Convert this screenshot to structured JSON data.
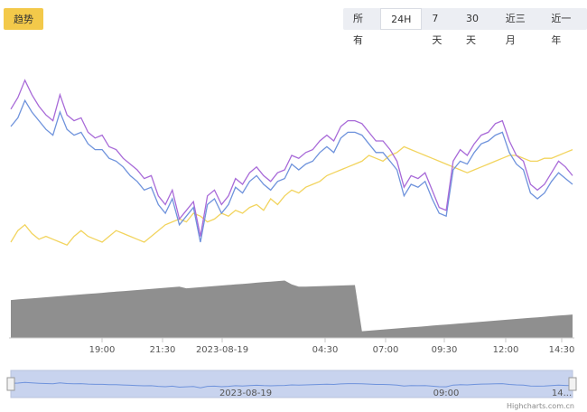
{
  "toolbar": {
    "trend_label": "趋势",
    "ranges": [
      "所有",
      "24H",
      "7天",
      "30天",
      "近三月",
      "近一年"
    ],
    "active_range": "24H"
  },
  "credit": "Highcharts.com.cn",
  "chart_data": {
    "type": "line",
    "title": "",
    "xlabel": "",
    "ylabel": "",
    "x_tick_labels": [
      "19:00",
      "21:30",
      "2023-08-19",
      "04:30",
      "07:00",
      "09:30",
      "12:00",
      "14:30"
    ],
    "navigator_tick_labels": [
      "2023-08-19",
      "09:00",
      "14..."
    ],
    "grid": false,
    "legend": "none",
    "colors": {
      "purple": "#a86ad8",
      "blue": "#6f93dc",
      "yellow": "#f2d45e",
      "volume": "#8f8f8f",
      "navigator_fill": "#c8d3ee",
      "navigator_line": "#6f93dc"
    },
    "x": [
      0,
      1,
      2,
      3,
      4,
      5,
      6,
      7,
      8,
      9,
      10,
      11,
      12,
      13,
      14,
      15,
      16,
      17,
      18,
      19,
      20,
      21,
      22,
      23,
      24,
      25,
      26,
      27,
      28,
      29,
      30,
      31,
      32,
      33,
      34,
      35,
      36,
      37,
      38,
      39,
      40,
      41,
      42,
      43,
      44,
      45,
      46,
      47,
      48,
      49,
      50,
      51,
      52,
      53,
      54,
      55,
      56,
      57,
      58,
      59,
      60,
      61,
      62,
      63,
      64,
      65,
      66,
      67,
      68,
      69,
      70,
      71,
      72,
      73,
      74,
      75,
      76,
      77,
      78,
      79,
      80
    ],
    "series": [
      {
        "color": "purple",
        "values": [
          66,
          70,
          76,
          71,
          67,
          64,
          62,
          71,
          64,
          62,
          63,
          58,
          56,
          57,
          53,
          52,
          49,
          47,
          45,
          42,
          43,
          36,
          33,
          38,
          28,
          31,
          34,
          22,
          36,
          38,
          33,
          36,
          42,
          40,
          44,
          46,
          43,
          41,
          44,
          45,
          50,
          49,
          51,
          52,
          55,
          57,
          55,
          60,
          62,
          62,
          61,
          58,
          55,
          55,
          52,
          48,
          39,
          43,
          42,
          44,
          38,
          32,
          31,
          48,
          52,
          50,
          54,
          57,
          58,
          61,
          62,
          55,
          50,
          48,
          40,
          38,
          40,
          44,
          48,
          46,
          43
        ]
      },
      {
        "color": "blue",
        "values": [
          60,
          63,
          69,
          65,
          62,
          59,
          57,
          65,
          59,
          57,
          58,
          54,
          52,
          52,
          49,
          48,
          46,
          43,
          41,
          38,
          39,
          33,
          30,
          35,
          26,
          29,
          32,
          20,
          33,
          35,
          30,
          33,
          39,
          37,
          41,
          43,
          40,
          38,
          41,
          42,
          47,
          45,
          47,
          48,
          51,
          53,
          51,
          56,
          58,
          58,
          57,
          54,
          51,
          51,
          48,
          45,
          36,
          40,
          39,
          41,
          35,
          30,
          29,
          45,
          48,
          47,
          51,
          54,
          55,
          57,
          58,
          51,
          47,
          45,
          37,
          35,
          37,
          41,
          44,
          42,
          40
        ]
      },
      {
        "color": "yellow",
        "values": [
          20,
          24,
          26,
          23,
          21,
          22,
          21,
          20,
          19,
          22,
          24,
          22,
          21,
          20,
          22,
          24,
          23,
          22,
          21,
          20,
          22,
          24,
          26,
          27,
          28,
          27,
          30,
          29,
          27,
          28,
          30,
          29,
          31,
          30,
          32,
          33,
          31,
          35,
          33,
          36,
          38,
          37,
          39,
          40,
          41,
          43,
          44,
          45,
          46,
          47,
          48,
          50,
          49,
          48,
          50,
          51,
          53,
          52,
          51,
          50,
          49,
          48,
          47,
          46,
          45,
          44,
          45,
          46,
          47,
          48,
          49,
          50,
          50,
          49,
          48,
          48,
          49,
          49,
          50,
          51,
          52
        ]
      }
    ],
    "ylim": [
      10,
      85
    ],
    "volume": {
      "values": [
        34,
        34.5,
        35,
        35.5,
        36,
        36.5,
        37,
        37.5,
        38,
        38.5,
        39,
        39.5,
        40,
        40.5,
        41,
        41.5,
        42,
        42.5,
        43,
        43.5,
        44,
        44.5,
        45,
        45.5,
        46,
        44.5,
        45,
        45.5,
        46,
        46.5,
        47,
        47.5,
        48,
        48.5,
        49,
        49.5,
        50,
        50.5,
        51,
        51.5,
        48,
        46,
        46,
        46.2,
        46.4,
        46.6,
        46.8,
        47,
        47.2,
        47.4,
        6,
        6.5,
        7,
        7.5,
        8,
        8.5,
        9,
        9.5,
        10,
        10.5,
        11,
        11.5,
        12,
        12.5,
        13,
        13.5,
        14,
        14.5,
        15,
        15.5,
        16,
        16.5,
        17,
        17.5,
        18,
        18.5,
        19,
        19.5,
        20,
        20.5,
        21
      ],
      "ylim": [
        0,
        60
      ]
    }
  }
}
